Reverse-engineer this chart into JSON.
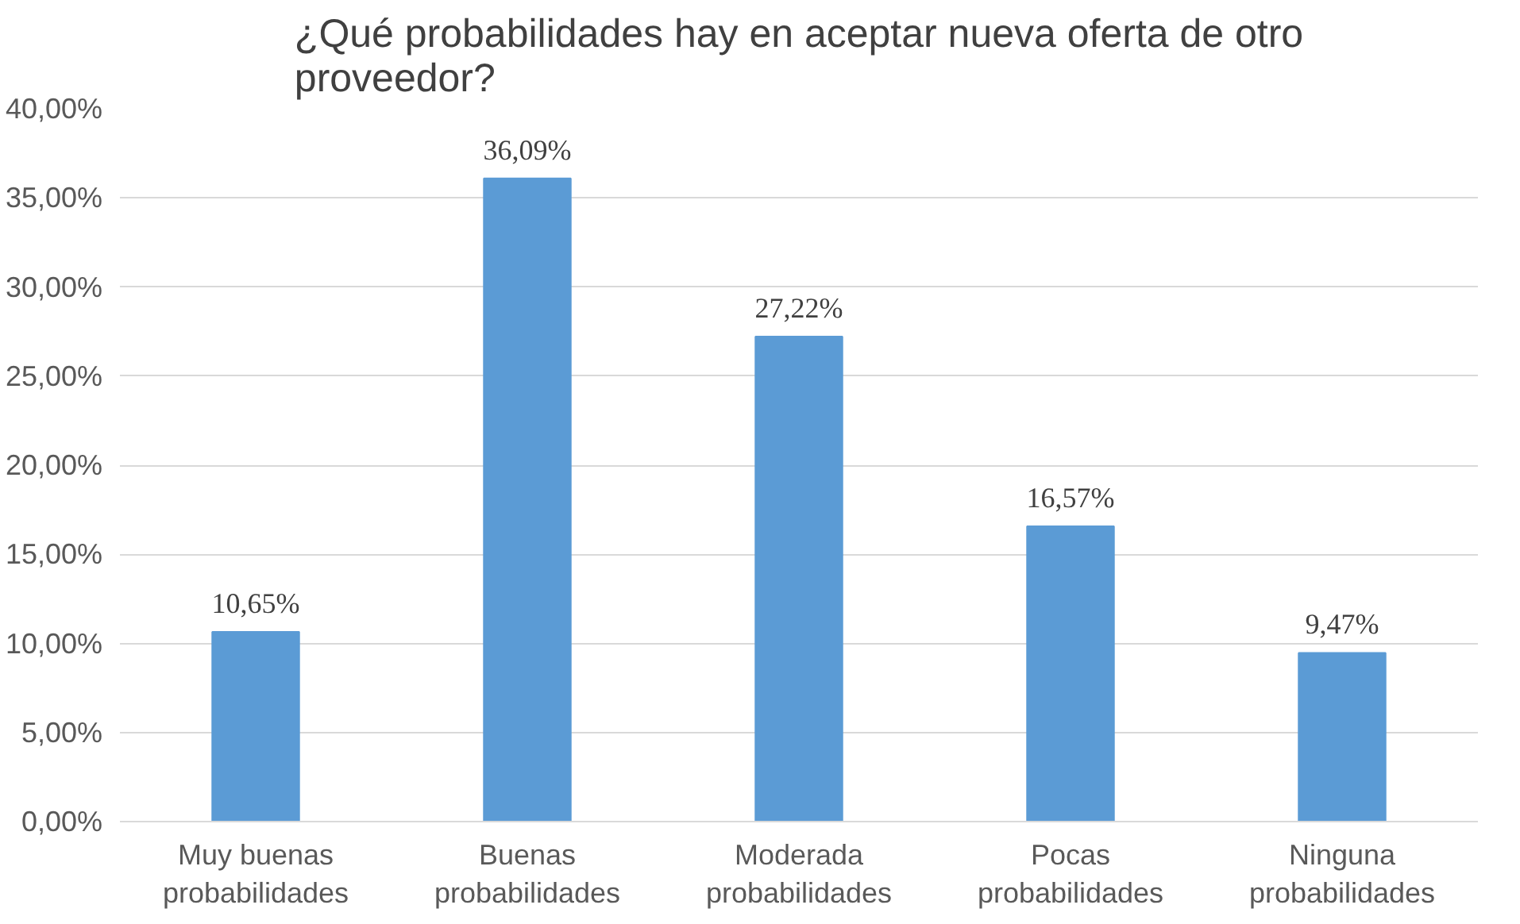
{
  "chart_data": {
    "type": "bar",
    "title": "¿Qué probabilidades hay en aceptar nueva oferta de otro proveedor?",
    "categories": [
      "Muy buenas probabilidades",
      "Buenas probabilidades",
      "Moderada probabilidades",
      "Pocas probabilidades",
      "Ninguna probabilidades"
    ],
    "values": [
      10.65,
      36.09,
      27.22,
      16.57,
      9.47
    ],
    "value_labels": [
      "10,65%",
      "36,09%",
      "27,22%",
      "16,57%",
      "9,47%"
    ],
    "color": "#5b9bd5",
    "ylim": [
      0,
      40
    ],
    "yticks": [
      {
        "value": 0,
        "label": "0,00%"
      },
      {
        "value": 5,
        "label": "5,00%"
      },
      {
        "value": 10,
        "label": "10,00%"
      },
      {
        "value": 15,
        "label": "15,00%"
      },
      {
        "value": 20,
        "label": "20,00%"
      },
      {
        "value": 25,
        "label": "25,00%"
      },
      {
        "value": 30,
        "label": "30,00%"
      },
      {
        "value": 35,
        "label": "35,00%"
      },
      {
        "value": 40,
        "label": "40,00%"
      }
    ],
    "grid": "y"
  }
}
